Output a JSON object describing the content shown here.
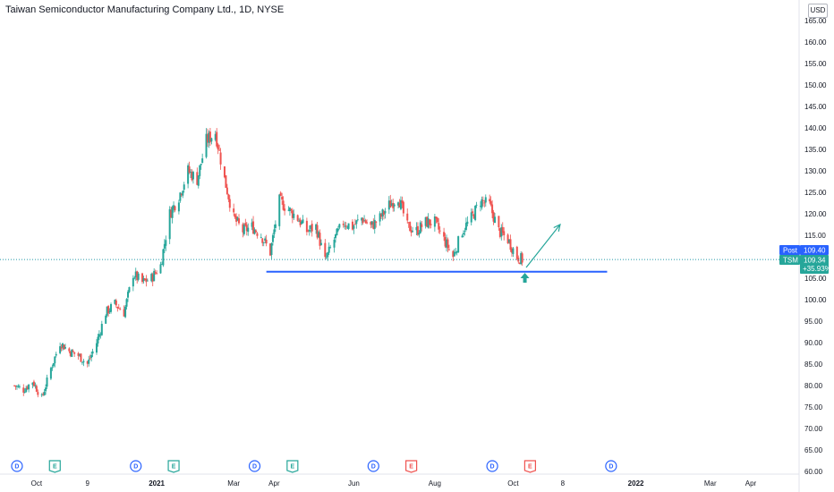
{
  "header": {
    "title": "Taiwan Semiconductor Manufacturing Company Ltd., 1D, NYSE",
    "currency": "USD"
  },
  "colors": {
    "up": "#26a69a",
    "down": "#ef5350",
    "support_line": "#2962ff",
    "projection_arrow": "#26a69a",
    "dotted_price": "#2196a6",
    "post_tag": "#2962ff",
    "ticker_tag": "#26a69a",
    "earnings_blue_e": "#26a69a",
    "earnings_red_e": "#ef5350",
    "dividend": "#2962ff",
    "axis_border": "#e0e3eb"
  },
  "price_tags": {
    "post_label": "Post",
    "post_value": "109.40",
    "ticker_label": "TSM",
    "ticker_value": "109.34",
    "ticker_change": "+35.93%"
  },
  "chart_data": {
    "type": "candlestick",
    "symbol": "TSM",
    "interval": "1D",
    "exchange": "NYSE",
    "ylim": [
      60,
      167
    ],
    "y_ticks": [
      60,
      65,
      70,
      75,
      80,
      85,
      90,
      95,
      100,
      105,
      110,
      115,
      120,
      125,
      130,
      135,
      140,
      145,
      150,
      155,
      160,
      165
    ],
    "y_tick_labels": [
      "60.00",
      "65.00",
      "70.00",
      "75.00",
      "80.00",
      "85.00",
      "90.00",
      "95.00",
      "100.00",
      "105.00",
      "110.00",
      "115.00",
      "120.00",
      "125.00",
      "130.00",
      "135.00",
      "140.00",
      "145.00",
      "150.00",
      "155.00",
      "160.00",
      "165.00"
    ],
    "x_ticks": [
      {
        "label": "Oct",
        "date": "2020-10-01",
        "bold": false
      },
      {
        "label": "9",
        "date": "2020-11-09",
        "bold": false
      },
      {
        "label": "2021",
        "date": "2021-01-01",
        "bold": true
      },
      {
        "label": "Mar",
        "date": "2021-03-01",
        "bold": false
      },
      {
        "label": "Apr",
        "date": "2021-04-01",
        "bold": false
      },
      {
        "label": "Jun",
        "date": "2021-06-01",
        "bold": false
      },
      {
        "label": "Aug",
        "date": "2021-08-02",
        "bold": false
      },
      {
        "label": "Oct",
        "date": "2021-10-01",
        "bold": false
      },
      {
        "label": "8",
        "date": "2021-11-08",
        "bold": false
      },
      {
        "label": "2022",
        "date": "2022-01-03",
        "bold": true
      },
      {
        "label": "Mar",
        "date": "2022-03-01",
        "bold": false
      },
      {
        "label": "Apr",
        "date": "2022-04-01",
        "bold": false
      }
    ],
    "price_path": [
      [
        "2020-09-14",
        80
      ],
      [
        "2020-09-21",
        79
      ],
      [
        "2020-09-28",
        81
      ],
      [
        "2020-10-05",
        77
      ],
      [
        "2020-10-12",
        84
      ],
      [
        "2020-10-19",
        90
      ],
      [
        "2020-10-26",
        88
      ],
      [
        "2020-11-02",
        87
      ],
      [
        "2020-11-09",
        85
      ],
      [
        "2020-11-16",
        90
      ],
      [
        "2020-11-23",
        97
      ],
      [
        "2020-11-30",
        99
      ],
      [
        "2020-12-07",
        97
      ],
      [
        "2020-12-14",
        106
      ],
      [
        "2020-12-21",
        104
      ],
      [
        "2020-12-28",
        105
      ],
      [
        "2021-01-04",
        108
      ],
      [
        "2021-01-11",
        120
      ],
      [
        "2021-01-18",
        124
      ],
      [
        "2021-01-25",
        130
      ],
      [
        "2021-02-01",
        128
      ],
      [
        "2021-02-08",
        137
      ],
      [
        "2021-02-15",
        139
      ],
      [
        "2021-02-22",
        128
      ],
      [
        "2021-03-01",
        119
      ],
      [
        "2021-03-08",
        116
      ],
      [
        "2021-03-15",
        117
      ],
      [
        "2021-03-22",
        115
      ],
      [
        "2021-03-29",
        111
      ],
      [
        "2021-04-05",
        123
      ],
      [
        "2021-04-12",
        121
      ],
      [
        "2021-04-19",
        119
      ],
      [
        "2021-04-26",
        116
      ],
      [
        "2021-05-03",
        117
      ],
      [
        "2021-05-10",
        109
      ],
      [
        "2021-05-17",
        114
      ],
      [
        "2021-05-24",
        118
      ],
      [
        "2021-05-31",
        117
      ],
      [
        "2021-06-07",
        119
      ],
      [
        "2021-06-14",
        117
      ],
      [
        "2021-06-21",
        119
      ],
      [
        "2021-06-28",
        122
      ],
      [
        "2021-07-05",
        124
      ],
      [
        "2021-07-12",
        117
      ],
      [
        "2021-07-19",
        116
      ],
      [
        "2021-07-26",
        118
      ],
      [
        "2021-08-02",
        118
      ],
      [
        "2021-08-09",
        114
      ],
      [
        "2021-08-16",
        110
      ],
      [
        "2021-08-23",
        116
      ],
      [
        "2021-08-30",
        119
      ],
      [
        "2021-09-06",
        123
      ],
      [
        "2021-09-13",
        122
      ],
      [
        "2021-09-20",
        116
      ],
      [
        "2021-09-27",
        114
      ],
      [
        "2021-10-04",
        110
      ],
      [
        "2021-10-08",
        109.34
      ]
    ],
    "support_level": 106.5,
    "support_start": "2021-03-26",
    "support_end": "2021-12-12",
    "projection": {
      "from": [
        "2021-10-11",
        107.5
      ],
      "to": [
        "2021-11-06",
        117.5
      ]
    },
    "up_marker": {
      "date": "2021-10-10",
      "value": 105
    },
    "last_price": 109.34,
    "post_price": 109.4,
    "events": [
      {
        "type": "dividend",
        "label": "D",
        "date": "2020-09-16",
        "color": "#2962ff"
      },
      {
        "type": "earnings",
        "label": "E",
        "date": "2020-10-15",
        "color": "#26a69a"
      },
      {
        "type": "dividend",
        "label": "D",
        "date": "2020-12-16",
        "color": "#2962ff"
      },
      {
        "type": "earnings",
        "label": "E",
        "date": "2021-01-14",
        "color": "#26a69a"
      },
      {
        "type": "dividend",
        "label": "D",
        "date": "2021-03-17",
        "color": "#2962ff"
      },
      {
        "type": "earnings",
        "label": "E",
        "date": "2021-04-15",
        "color": "#26a69a"
      },
      {
        "type": "dividend",
        "label": "D",
        "date": "2021-06-16",
        "color": "#2962ff"
      },
      {
        "type": "earnings",
        "label": "E",
        "date": "2021-07-15",
        "color": "#ef5350"
      },
      {
        "type": "dividend",
        "label": "D",
        "date": "2021-09-15",
        "color": "#2962ff"
      },
      {
        "type": "earnings",
        "label": "E",
        "date": "2021-10-14",
        "color": "#ef5350"
      },
      {
        "type": "dividend",
        "label": "D",
        "date": "2021-12-15",
        "color": "#2962ff"
      }
    ]
  }
}
